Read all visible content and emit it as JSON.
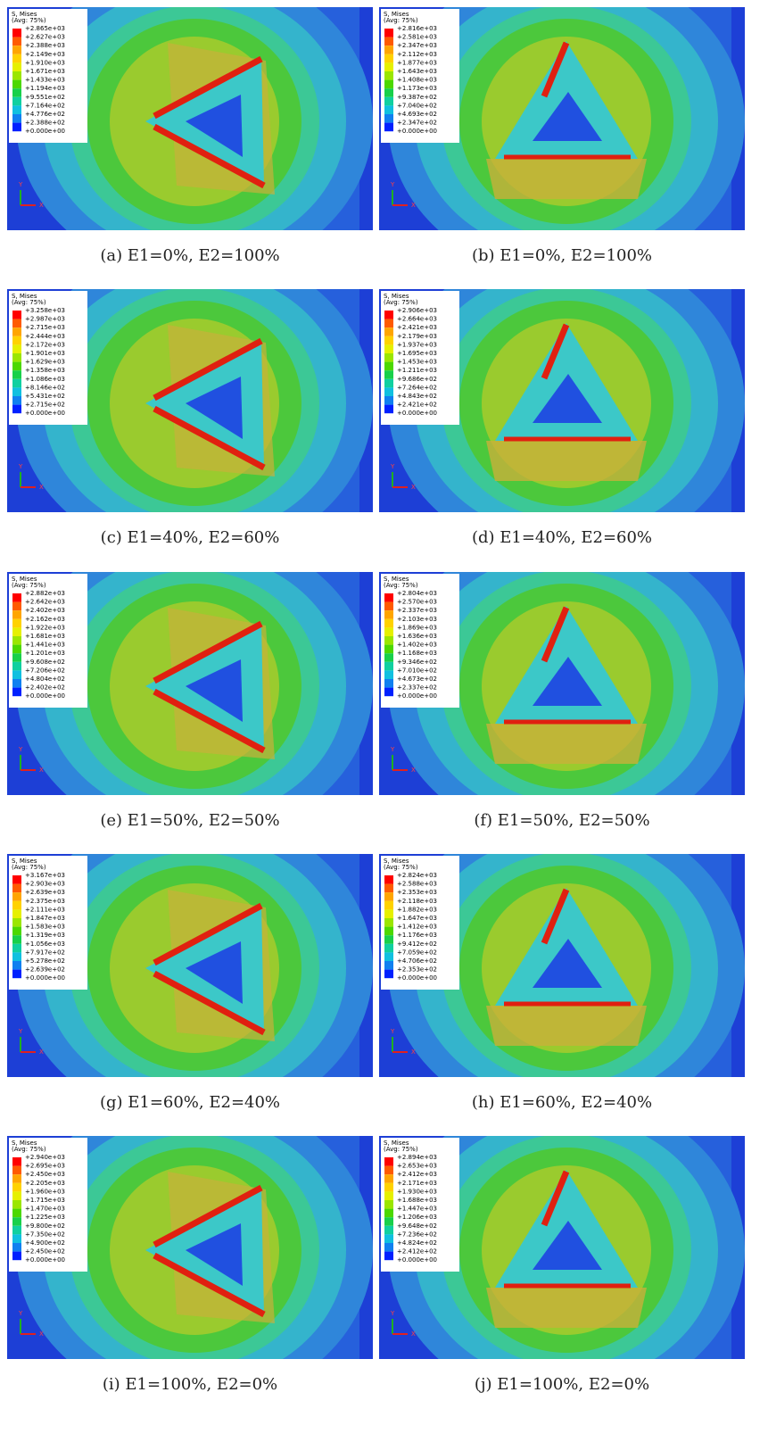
{
  "panels": [
    {
      "caption": "(a)  E1=0%, E2=100%",
      "legend": {
        "title": "S, Mises",
        "subtitle": "(Avg: 75%)",
        "values": [
          "+2.865e+03",
          "+2.627e+03",
          "+2.388e+03",
          "+2.149e+03",
          "+1.910e+03",
          "+1.671e+03",
          "+1.433e+03",
          "+1.194e+03",
          "+9.551e+02",
          "+7.164e+02",
          "+4.776e+02",
          "+2.388e+02",
          "+0.000e+00"
        ]
      },
      "axes": [
        "Y",
        "X"
      ]
    },
    {
      "caption": "(b)  E1=0%, E2=100%",
      "legend": {
        "title": "S, Mises",
        "subtitle": "(Avg: 75%)",
        "values": [
          "+2.816e+03",
          "+2.581e+03",
          "+2.347e+03",
          "+2.112e+03",
          "+1.877e+03",
          "+1.643e+03",
          "+1.408e+03",
          "+1.173e+03",
          "+9.387e+02",
          "+7.040e+02",
          "+4.693e+02",
          "+2.347e+02",
          "+0.000e+00"
        ]
      },
      "axes": [
        "Y",
        "X"
      ]
    },
    {
      "caption": "(c)  E1=40%, E2=60%",
      "legend": {
        "title": "S, Mises",
        "subtitle": "(Avg: 75%)",
        "values": [
          "+3.258e+03",
          "+2.987e+03",
          "+2.715e+03",
          "+2.444e+03",
          "+2.172e+03",
          "+1.901e+03",
          "+1.629e+03",
          "+1.358e+03",
          "+1.086e+03",
          "+8.146e+02",
          "+5.431e+02",
          "+2.715e+02",
          "+0.000e+00"
        ]
      },
      "axes": [
        "Y",
        "X"
      ]
    },
    {
      "caption": "(d)  E1=40%, E2=60%",
      "legend": {
        "title": "S, Mises",
        "subtitle": "(Avg: 75%)",
        "values": [
          "+2.906e+03",
          "+2.664e+03",
          "+2.421e+03",
          "+2.179e+03",
          "+1.937e+03",
          "+1.695e+03",
          "+1.453e+03",
          "+1.211e+03",
          "+9.686e+02",
          "+7.264e+02",
          "+4.843e+02",
          "+2.421e+02",
          "+0.000e+00"
        ]
      },
      "axes": [
        "Y",
        "X"
      ]
    },
    {
      "caption": "(e)  E1=50%, E2=50%",
      "legend": {
        "title": "S, Mises",
        "subtitle": "(Avg: 75%)",
        "values": [
          "+2.882e+03",
          "+2.642e+03",
          "+2.402e+03",
          "+2.162e+03",
          "+1.922e+03",
          "+1.681e+03",
          "+1.441e+03",
          "+1.201e+03",
          "+9.608e+02",
          "+7.206e+02",
          "+4.804e+02",
          "+2.402e+02",
          "+0.000e+00"
        ]
      },
      "axes": [
        "Y",
        "X"
      ]
    },
    {
      "caption": "(f)  E1=50%, E2=50%",
      "legend": {
        "title": "S, Mises",
        "subtitle": "(Avg: 75%)",
        "values": [
          "+2.804e+03",
          "+2.570e+03",
          "+2.337e+03",
          "+2.103e+03",
          "+1.869e+03",
          "+1.636e+03",
          "+1.402e+03",
          "+1.168e+03",
          "+9.346e+02",
          "+7.010e+02",
          "+4.673e+02",
          "+2.337e+02",
          "+0.000e+00"
        ]
      },
      "axes": [
        "Y",
        "X"
      ]
    },
    {
      "caption": "(g)  E1=60%, E2=40%",
      "legend": {
        "title": "S, Mises",
        "subtitle": "(Avg: 75%)",
        "values": [
          "+3.167e+03",
          "+2.903e+03",
          "+2.639e+03",
          "+2.375e+03",
          "+2.111e+03",
          "+1.847e+03",
          "+1.583e+03",
          "+1.319e+03",
          "+1.056e+03",
          "+7.917e+02",
          "+5.278e+02",
          "+2.639e+02",
          "+0.000e+00"
        ]
      },
      "axes": [
        "Y",
        "X"
      ]
    },
    {
      "caption": "(h)  E1=60%, E2=40%",
      "legend": {
        "title": "S, Mises",
        "subtitle": "(Avg: 75%)",
        "values": [
          "+2.824e+03",
          "+2.588e+03",
          "+2.353e+03",
          "+2.118e+03",
          "+1.882e+03",
          "+1.647e+03",
          "+1.412e+03",
          "+1.176e+03",
          "+9.412e+02",
          "+7.059e+02",
          "+4.706e+02",
          "+2.353e+02",
          "+0.000e+00"
        ]
      },
      "axes": [
        "Y",
        "X"
      ]
    },
    {
      "caption": "(i)  E1=100%, E2=0%",
      "legend": {
        "title": "S, Mises",
        "subtitle": "(Avg: 75%)",
        "values": [
          "+2.940e+03",
          "+2.695e+03",
          "+2.450e+03",
          "+2.205e+03",
          "+1.960e+03",
          "+1.715e+03",
          "+1.470e+03",
          "+1.225e+03",
          "+9.800e+02",
          "+7.350e+02",
          "+4.900e+02",
          "+2.450e+02",
          "+0.000e+00"
        ]
      },
      "axes": [
        "Y",
        "X"
      ]
    },
    {
      "caption": "(j)  E1=100%, E2=0%",
      "legend": {
        "title": "S, Mises",
        "subtitle": "(Avg: 75%)",
        "values": [
          "+2.894e+03",
          "+2.653e+03",
          "+2.412e+03",
          "+2.171e+03",
          "+1.930e+03",
          "+1.688e+03",
          "+1.447e+03",
          "+1.206e+03",
          "+9.648e+02",
          "+7.236e+02",
          "+4.824e+02",
          "+2.412e+02",
          "+0.000e+00"
        ]
      },
      "axes": [
        "Y",
        "X"
      ]
    }
  ]
}
